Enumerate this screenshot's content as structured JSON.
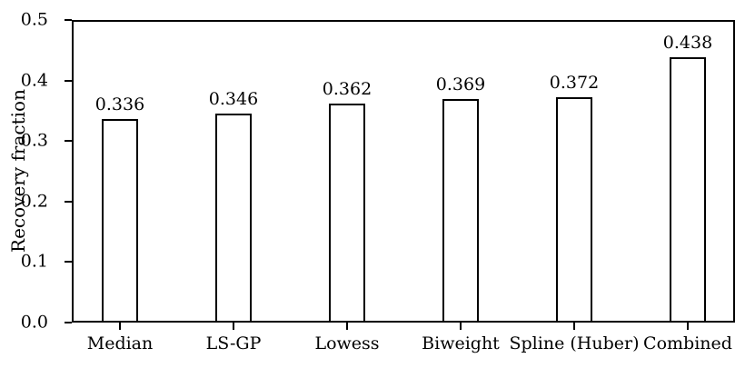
{
  "chart_data": {
    "type": "bar",
    "title": "",
    "xlabel": "",
    "ylabel": "Recovery fraction",
    "categories": [
      "Median",
      "LS-GP",
      "Lowess",
      "Biweight",
      "Spline (Huber)",
      "Combined"
    ],
    "values": [
      0.336,
      0.346,
      0.362,
      0.369,
      0.372,
      0.438
    ],
    "value_labels": [
      "0.336",
      "0.346",
      "0.362",
      "0.369",
      "0.372",
      "0.438"
    ],
    "ylim": [
      0.0,
      0.5
    ],
    "yticks": [
      0.0,
      0.1,
      0.2,
      0.3,
      0.4,
      0.5
    ],
    "ytick_labels": [
      "0.0",
      "0.1",
      "0.2",
      "0.3",
      "0.4",
      "0.5"
    ],
    "grid": false,
    "legend": null,
    "frame": "full-box",
    "bar_fill_color": "#ffffff",
    "bar_edge_color": "#000000",
    "text_color": "#000000"
  }
}
